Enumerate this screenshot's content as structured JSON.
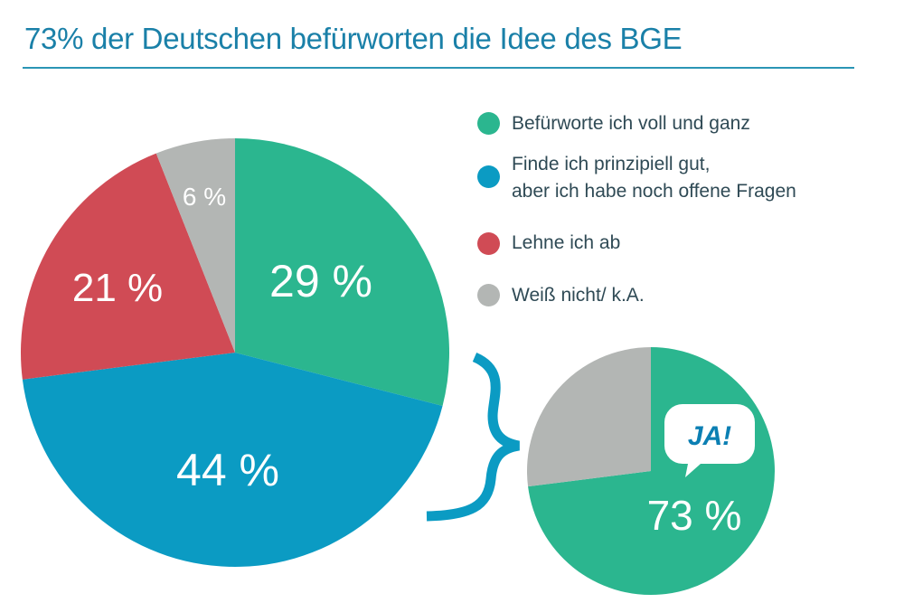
{
  "title": "73% der Deutschen befürworten die Idee des BGE",
  "chart_data": [
    {
      "type": "pie",
      "slices": [
        {
          "name": "Befürworte ich voll und ganz",
          "value": 29,
          "label": "29 %",
          "color": "#2bb68f"
        },
        {
          "name": "Finde ich prinzipiell gut, aber ich habe noch offene Fragen",
          "value": 44,
          "label": "44 %",
          "color": "#0b9bc3"
        },
        {
          "name": "Lehne ich ab",
          "value": 21,
          "label": "21 %",
          "color": "#d04b55"
        },
        {
          "name": "Weiß nicht/ k.A.",
          "value": 6,
          "label": "6 %",
          "color": "#b3b6b4"
        }
      ],
      "start": "top",
      "direction": "clockwise",
      "legend": "right"
    },
    {
      "type": "pie",
      "slices": [
        {
          "value": 73,
          "label": "73 %",
          "color": "#2bb68f"
        },
        {
          "value": 27,
          "label": "",
          "color": "#b3b6b4"
        }
      ],
      "start": "top",
      "direction": "clockwise",
      "badge": "JA!"
    }
  ],
  "legend": [
    {
      "line1": "Befürworte ich voll und ganz",
      "line2": "",
      "color": "#2bb68f"
    },
    {
      "line1": "Finde ich prinzipiell gut,",
      "line2": "aber ich habe noch offene Fragen",
      "color": "#0b9bc3"
    },
    {
      "line1": "Lehne ich ab",
      "line2": "",
      "color": "#d04b55"
    },
    {
      "line1": "Weiß nicht/ k.A.",
      "line2": "",
      "color": "#b3b6b4"
    }
  ],
  "brace_color": "#0b9bc3"
}
